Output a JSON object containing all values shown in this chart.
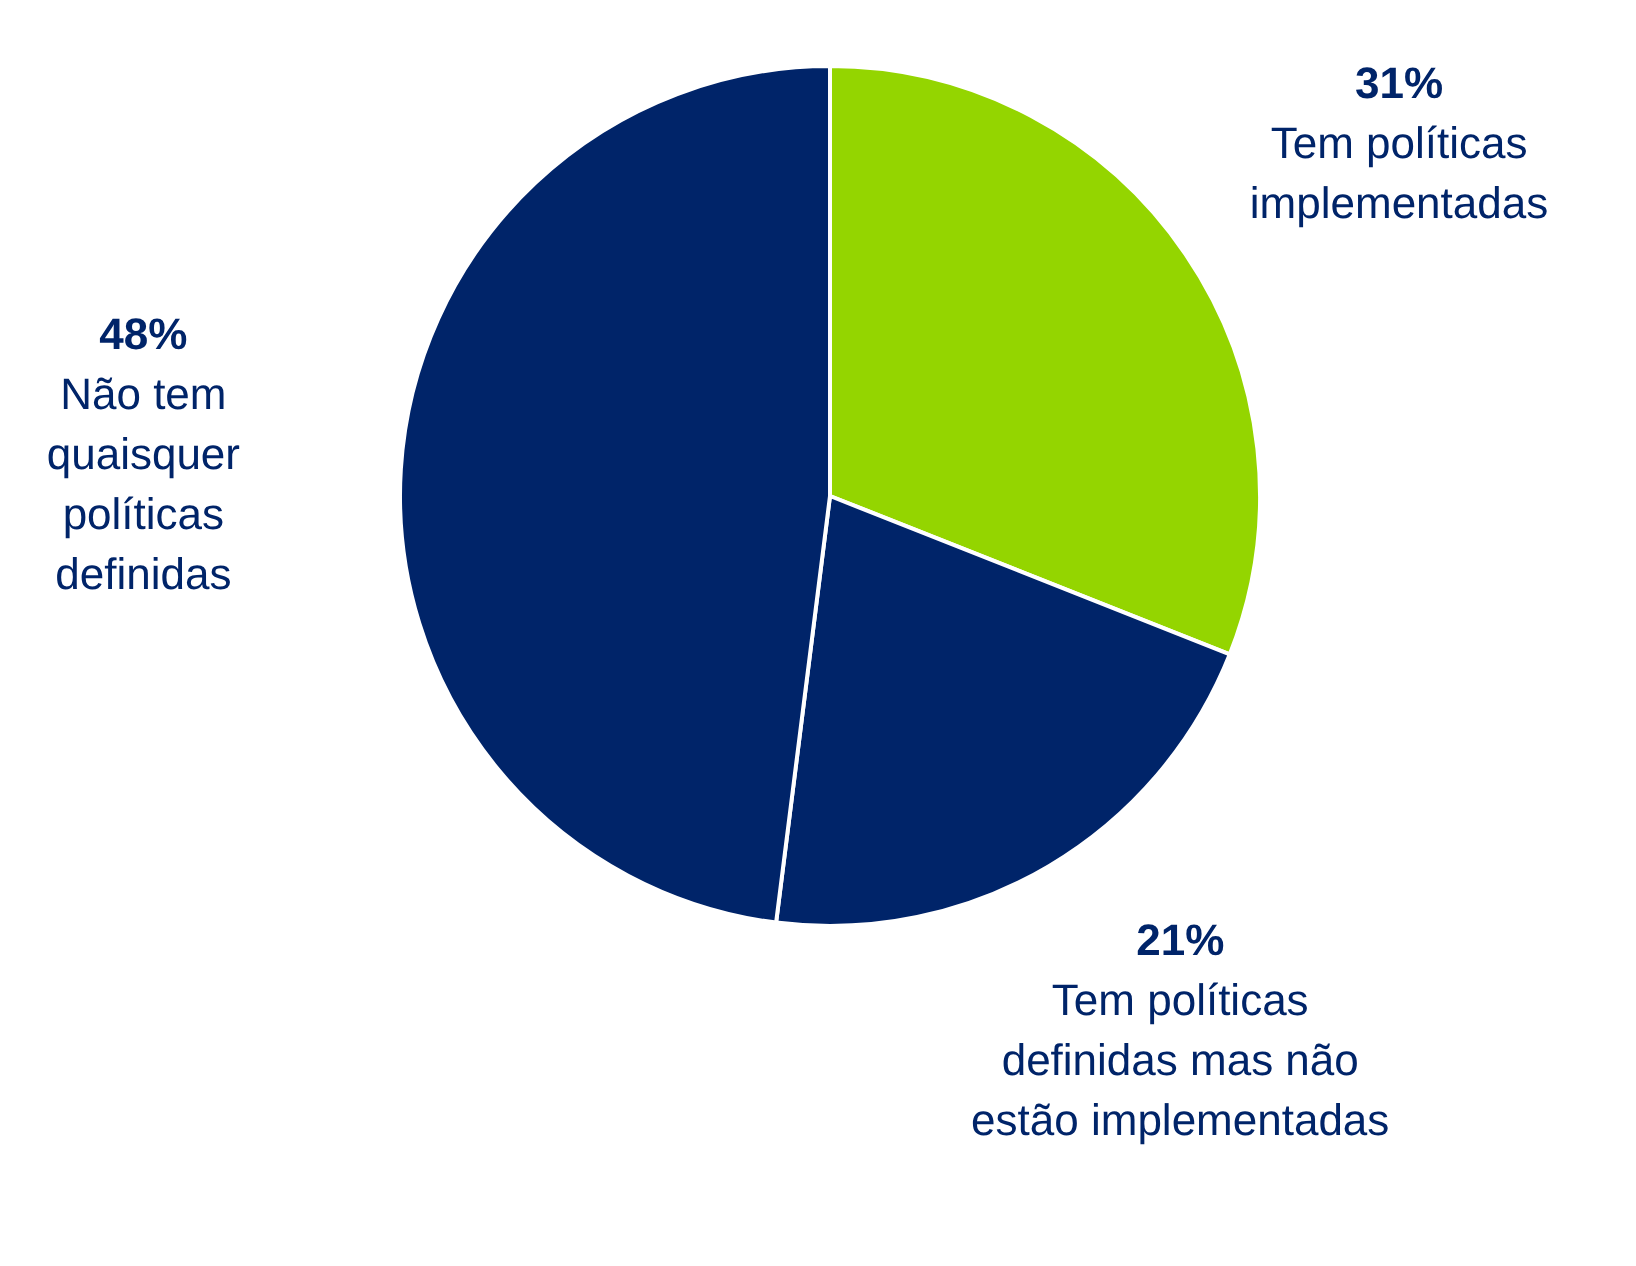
{
  "chart_data": {
    "type": "pie",
    "categories": [
      "Tem políticas\nimplementadas",
      "Tem políticas\ndefinidas mas não\nestão implementadas",
      "Não tem\nquaisquer\npolíticas\ndefinidas"
    ],
    "values": [
      31,
      21,
      48
    ],
    "value_labels": [
      "31%",
      "21%",
      "48%"
    ],
    "colors": [
      "#94d500",
      "#002469",
      "#002469"
    ],
    "legend": false
  }
}
